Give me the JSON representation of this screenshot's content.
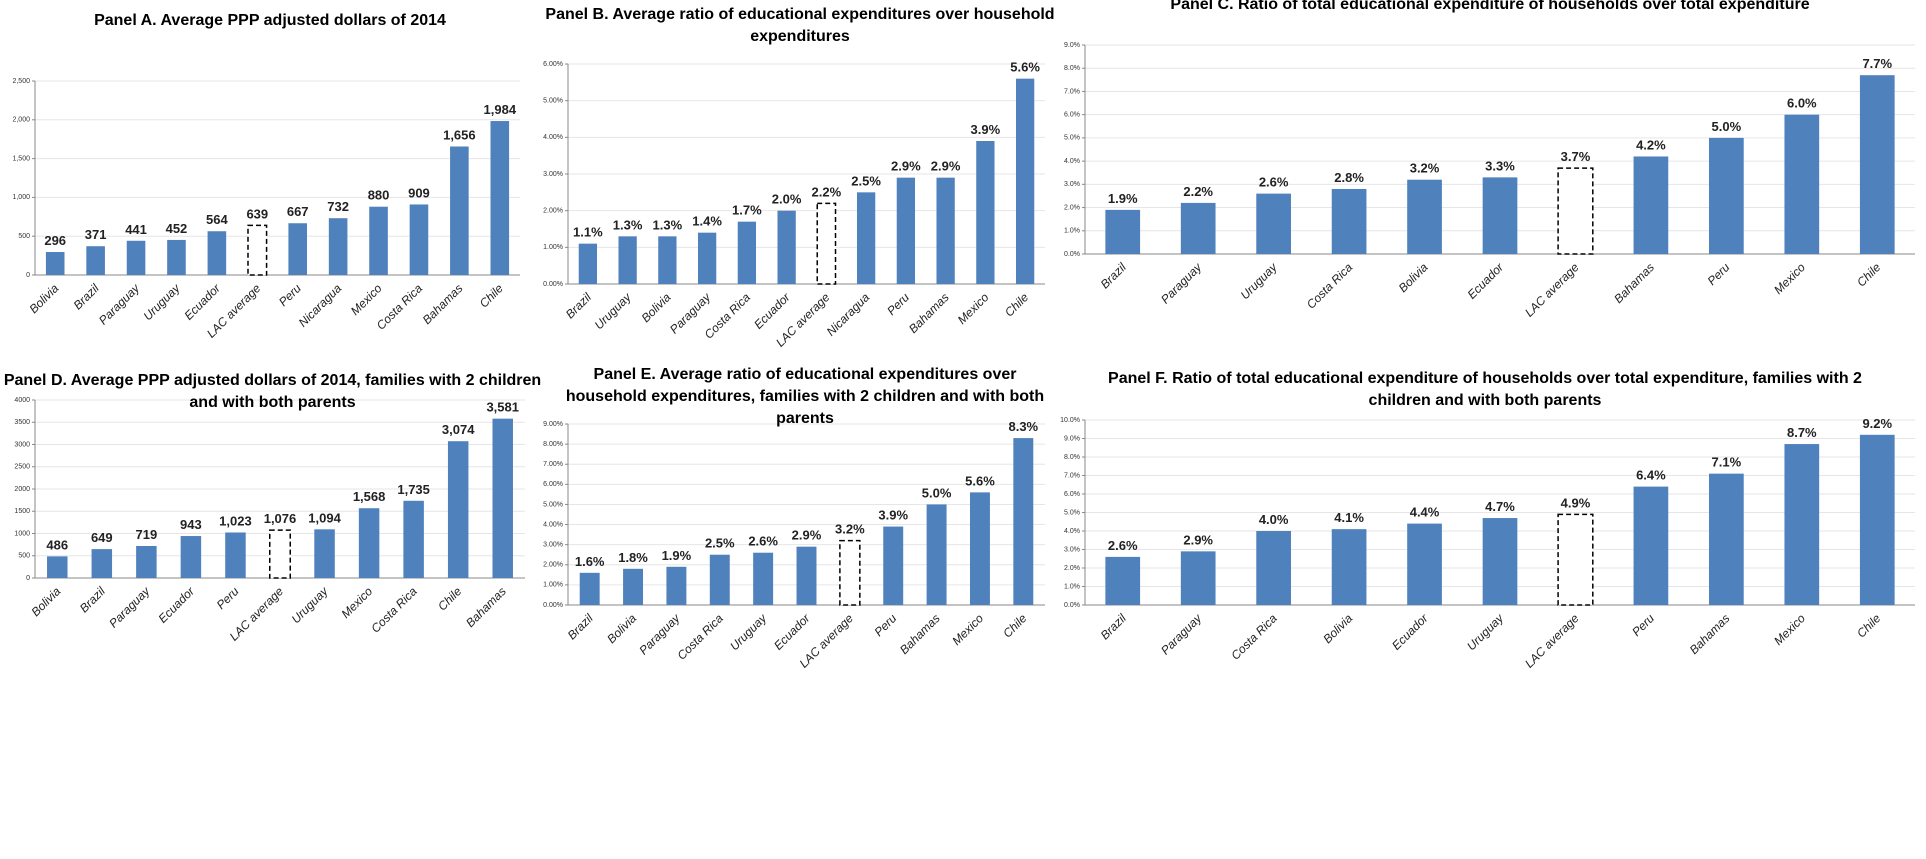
{
  "chart_data": [
    {
      "type": "bar",
      "title": "Panel A. Average  PPP adjusted dollars of 2014",
      "categories": [
        "Bolivia",
        "Brazil",
        "Paraguay",
        "Uruguay",
        "Ecuador",
        "LAC average",
        "Peru",
        "Nicaragua",
        "Mexico",
        "Costa Rica",
        "Bahamas",
        "Chile"
      ],
      "values": [
        296,
        371,
        441,
        452,
        564,
        639,
        667,
        732,
        880,
        909,
        1656,
        1984
      ],
      "value_labels": [
        "296",
        "371",
        "441",
        "452",
        "564",
        "639",
        "667",
        "732",
        "880",
        "909",
        "1,656",
        "1,984"
      ],
      "dashed": [
        false,
        false,
        false,
        false,
        false,
        true,
        false,
        false,
        false,
        false,
        false,
        false
      ],
      "color": "#4f81bd",
      "ylim": [
        0,
        2500
      ],
      "yticks": [
        0,
        500,
        {
          "value": 1000,
          "label": "1,000"
        },
        {
          "value": 1500,
          "label": "1,500"
        },
        {
          "value": 2000,
          "label": "2,000"
        },
        {
          "value": 2500,
          "label": "2,500"
        }
      ],
      "grid": true
    },
    {
      "type": "bar",
      "title": "Panel B. Average ratio of educational expenditures over household expenditures",
      "categories": [
        "Brazil",
        "Uruguay",
        "Bolivia",
        "Paraguay",
        "Costa Rica",
        "Ecuador",
        "LAC average",
        "Nicaragua",
        "Peru",
        "Bahamas",
        "Mexico",
        "Chile"
      ],
      "values": [
        1.1,
        1.3,
        1.3,
        1.4,
        1.7,
        2.0,
        2.2,
        2.5,
        2.9,
        2.9,
        3.9,
        5.6
      ],
      "value_labels": [
        "1.1%",
        "1.3%",
        "1.3%",
        "1.4%",
        "1.7%",
        "2.0%",
        "2.2%",
        "2.5%",
        "2.9%",
        "2.9%",
        "3.9%",
        "5.6%"
      ],
      "dashed": [
        false,
        false,
        false,
        false,
        false,
        false,
        true,
        false,
        false,
        false,
        false,
        false
      ],
      "color": "#4f81bd",
      "ylim": [
        0,
        6
      ],
      "yticks": [
        {
          "value": 0,
          "label": "0.00%"
        },
        {
          "value": 1,
          "label": "1.00%"
        },
        {
          "value": 2,
          "label": "2.00%"
        },
        {
          "value": 3,
          "label": "3.00%"
        },
        {
          "value": 4,
          "label": "4.00%"
        },
        {
          "value": 5,
          "label": "5.00%"
        },
        {
          "value": 6,
          "label": "6.00%"
        }
      ],
      "grid": true
    },
    {
      "type": "bar",
      "title": "Panel C. Ratio of  total educational expenditure of households over total expenditure",
      "categories": [
        "Brazil",
        "Paraguay",
        "Uruguay",
        "Costa Rica",
        "Bolivia",
        "Ecuador",
        "LAC average",
        "Bahamas",
        "Peru",
        "Mexico",
        "Chile"
      ],
      "values": [
        1.9,
        2.2,
        2.6,
        2.8,
        3.2,
        3.3,
        3.7,
        4.2,
        5.0,
        6.0,
        7.7
      ],
      "value_labels": [
        "1.9%",
        "2.2%",
        "2.6%",
        "2.8%",
        "3.2%",
        "3.3%",
        "3.7%",
        "4.2%",
        "5.0%",
        "6.0%",
        "7.7%"
      ],
      "dashed": [
        false,
        false,
        false,
        false,
        false,
        false,
        true,
        false,
        false,
        false,
        false
      ],
      "color": "#4f81bd",
      "ylim": [
        0,
        9
      ],
      "yticks": [
        {
          "value": 0,
          "label": "0.0%"
        },
        {
          "value": 1,
          "label": "1.0%"
        },
        {
          "value": 2,
          "label": "2.0%"
        },
        {
          "value": 3,
          "label": "3.0%"
        },
        {
          "value": 4,
          "label": "4.0%"
        },
        {
          "value": 5,
          "label": "5.0%"
        },
        {
          "value": 6,
          "label": "6.0%"
        },
        {
          "value": 7,
          "label": "7.0%"
        },
        {
          "value": 8,
          "label": "8.0%"
        },
        {
          "value": 9,
          "label": "9.0%"
        }
      ],
      "grid": true
    },
    {
      "type": "bar",
      "title": "Panel D. Average PPP adjusted dollars of 2014, families with 2 children and with both parents",
      "categories": [
        "Bolivia",
        "Brazil",
        "Paraguay",
        "Ecuador",
        "Peru",
        "LAC average",
        "Uruguay",
        "Mexico",
        "Costa Rica",
        "Chile",
        "Bahamas"
      ],
      "values": [
        486,
        649,
        719,
        943,
        1023,
        1076,
        1094,
        1568,
        1735,
        3074,
        3581
      ],
      "value_labels": [
        "486",
        "649",
        "719",
        "943",
        "1,023",
        "1,076",
        "1,094",
        "1,568",
        "1,735",
        "3,074",
        "3,581"
      ],
      "dashed": [
        false,
        false,
        false,
        false,
        false,
        true,
        false,
        false,
        false,
        false,
        false
      ],
      "color": "#4f81bd",
      "ylim": [
        0,
        4000
      ],
      "yticks": [
        0,
        500,
        1000,
        1500,
        2000,
        2500,
        3000,
        3500,
        4000
      ],
      "grid": true
    },
    {
      "type": "bar",
      "title": "Panel E. Average ratio of educational expenditures over household expenditures, families with 2 children and with both parents",
      "categories": [
        "Brazil",
        "Bolivia",
        "Paraguay",
        "Costa Rica",
        "Uruguay",
        "Ecuador",
        "LAC average",
        "Peru",
        "Bahamas",
        "Mexico",
        "Chile"
      ],
      "values": [
        1.6,
        1.8,
        1.9,
        2.5,
        2.6,
        2.9,
        3.2,
        3.9,
        5.0,
        5.6,
        8.3
      ],
      "value_labels": [
        "1.6%",
        "1.8%",
        "1.9%",
        "2.5%",
        "2.6%",
        "2.9%",
        "3.2%",
        "3.9%",
        "5.0%",
        "5.6%",
        "8.3%"
      ],
      "dashed": [
        false,
        false,
        false,
        false,
        false,
        false,
        true,
        false,
        false,
        false,
        false
      ],
      "color": "#4f81bd",
      "ylim": [
        0,
        9
      ],
      "yticks": [
        {
          "value": 0,
          "label": "0.00%"
        },
        {
          "value": 1,
          "label": "1.00%"
        },
        {
          "value": 2,
          "label": "2.00%"
        },
        {
          "value": 3,
          "label": "3.00%"
        },
        {
          "value": 4,
          "label": "4.00%"
        },
        {
          "value": 5,
          "label": "5.00%"
        },
        {
          "value": 6,
          "label": "6.00%"
        },
        {
          "value": 7,
          "label": "7.00%"
        },
        {
          "value": 8,
          "label": "8.00%"
        },
        {
          "value": 9,
          "label": "9.00%"
        }
      ],
      "grid": true
    },
    {
      "type": "bar",
      "title": "Panel F. Ratio of total educational expenditure  of households over total expenditure,  families with 2 children and with  both parents",
      "categories": [
        "Brazil",
        "Paraguay",
        "Costa Rica",
        "Bolivia",
        "Ecuador",
        "Uruguay",
        "LAC average",
        "Peru",
        "Bahamas",
        "Mexico",
        "Chile"
      ],
      "values": [
        2.6,
        2.9,
        4.0,
        4.1,
        4.4,
        4.7,
        4.9,
        6.4,
        7.1,
        8.7,
        9.2
      ],
      "value_labels": [
        "2.6%",
        "2.9%",
        "4.0%",
        "4.1%",
        "4.4%",
        "4.7%",
        "4.9%",
        "6.4%",
        "7.1%",
        "8.7%",
        "9.2%"
      ],
      "dashed": [
        false,
        false,
        false,
        false,
        false,
        false,
        true,
        false,
        false,
        false,
        false
      ],
      "color": "#4f81bd",
      "ylim": [
        0,
        10
      ],
      "yticks": [
        {
          "value": 0,
          "label": "0.0%"
        },
        {
          "value": 1,
          "label": "1.0%"
        },
        {
          "value": 2,
          "label": "2.0%"
        },
        {
          "value": 3,
          "label": "3.0%"
        },
        {
          "value": 4,
          "label": "4.0%"
        },
        {
          "value": 5,
          "label": "5.0%"
        },
        {
          "value": 6,
          "label": "6.0%"
        },
        {
          "value": 7,
          "label": "7.0%"
        },
        {
          "value": 8,
          "label": "8.0%"
        },
        {
          "value": 9,
          "label": "9.0%"
        },
        {
          "value": 10,
          "label": "10.0%"
        }
      ],
      "grid": true
    }
  ]
}
